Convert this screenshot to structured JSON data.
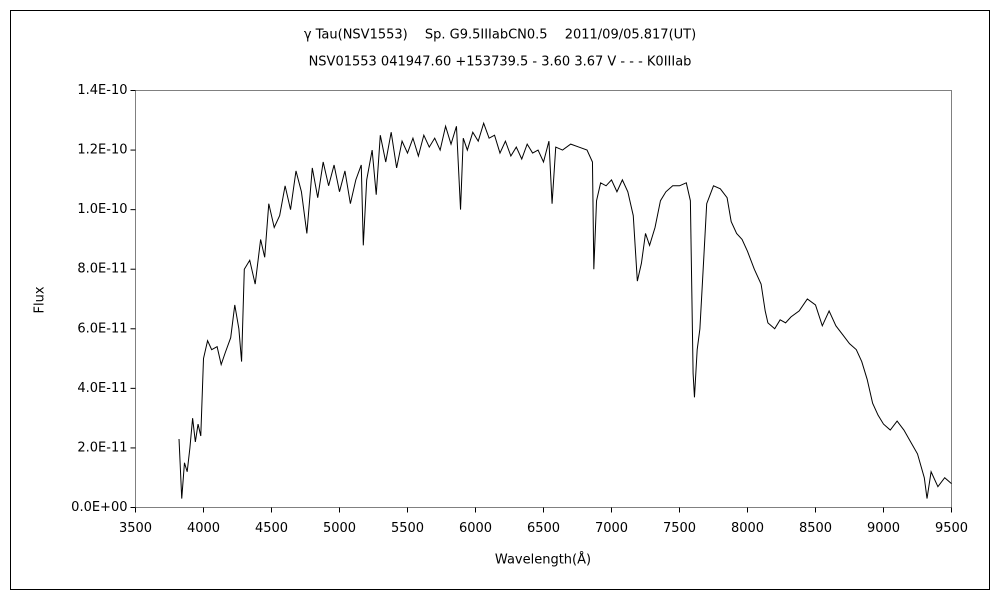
{
  "chart_data": {
    "type": "line",
    "title": "γ Tau(NSV1553)　 Sp. G9.5IIIabCN0.5　 2011/09/05.817(UT)",
    "subtitle": "NSV01553 041947.60 +153739.5 - 3.60 3.67 V - - - K0IIIab",
    "x_label": "Wavelength(Å)",
    "y_label": "Flux",
    "xlim": [
      3500,
      9500
    ],
    "xticks": [
      3500,
      4000,
      4500,
      5000,
      5500,
      6000,
      6500,
      7000,
      7500,
      8000,
      8500,
      9000,
      9500
    ],
    "ylim": [
      0,
      1.4e-10
    ],
    "yticks": [
      {
        "value": 0,
        "label": "0.0E+00"
      },
      {
        "value": 2e-11,
        "label": "2.0E-11"
      },
      {
        "value": 4e-11,
        "label": "4.0E-11"
      },
      {
        "value": 6e-11,
        "label": "6.0E-11"
      },
      {
        "value": 8e-11,
        "label": "8.0E-11"
      },
      {
        "value": 1e-10,
        "label": "1.0E-10"
      },
      {
        "value": 1.2e-10,
        "label": "1.2E-10"
      },
      {
        "value": 1.4e-10,
        "label": "1.4E-10"
      }
    ],
    "x": [
      3820,
      3840,
      3860,
      3880,
      3900,
      3920,
      3940,
      3960,
      3980,
      4000,
      4030,
      4060,
      4100,
      4130,
      4160,
      4200,
      4230,
      4260,
      4280,
      4300,
      4340,
      4380,
      4420,
      4450,
      4480,
      4520,
      4560,
      4600,
      4640,
      4680,
      4720,
      4760,
      4800,
      4840,
      4880,
      4920,
      4960,
      5000,
      5040,
      5080,
      5120,
      5160,
      5175,
      5200,
      5240,
      5270,
      5300,
      5340,
      5380,
      5420,
      5460,
      5500,
      5540,
      5580,
      5620,
      5660,
      5700,
      5740,
      5780,
      5820,
      5860,
      5890,
      5910,
      5940,
      5980,
      6020,
      6060,
      6100,
      6140,
      6180,
      6220,
      6260,
      6300,
      6340,
      6380,
      6420,
      6460,
      6500,
      6540,
      6563,
      6590,
      6640,
      6700,
      6760,
      6820,
      6860,
      6870,
      6890,
      6920,
      6960,
      7000,
      7040,
      7080,
      7120,
      7160,
      7190,
      7220,
      7250,
      7280,
      7320,
      7360,
      7400,
      7450,
      7500,
      7550,
      7580,
      7600,
      7610,
      7630,
      7650,
      7680,
      7700,
      7750,
      7800,
      7850,
      7880,
      7920,
      7960,
      8000,
      8050,
      8100,
      8130,
      8150,
      8200,
      8240,
      8280,
      8320,
      8380,
      8440,
      8500,
      8550,
      8600,
      8650,
      8700,
      8750,
      8800,
      8840,
      8880,
      8920,
      8960,
      9000,
      9050,
      9100,
      9150,
      9200,
      9250,
      9300,
      9320,
      9350,
      9400,
      9450,
      9500
    ],
    "series": [
      {
        "color": "#000000",
        "values": [
          2.3e-11,
          3e-12,
          1.5e-11,
          1.2e-11,
          2e-11,
          3e-11,
          2.2e-11,
          2.8e-11,
          2.4e-11,
          5e-11,
          5.6e-11,
          5.3e-11,
          5.4e-11,
          4.8e-11,
          5.2e-11,
          5.7e-11,
          6.8e-11,
          6e-11,
          4.9e-11,
          8e-11,
          8.3e-11,
          7.5e-11,
          9e-11,
          8.4e-11,
          1.02e-10,
          9.4e-11,
          9.8e-11,
          1.08e-10,
          1e-10,
          1.13e-10,
          1.06e-10,
          9.2e-11,
          1.14e-10,
          1.04e-10,
          1.16e-10,
          1.08e-10,
          1.15e-10,
          1.06e-10,
          1.13e-10,
          1.02e-10,
          1.1e-10,
          1.15e-10,
          8.8e-11,
          1.1e-10,
          1.2e-10,
          1.05e-10,
          1.25e-10,
          1.16e-10,
          1.26e-10,
          1.14e-10,
          1.23e-10,
          1.19e-10,
          1.24e-10,
          1.18e-10,
          1.25e-10,
          1.21e-10,
          1.24e-10,
          1.2e-10,
          1.28e-10,
          1.22e-10,
          1.28e-10,
          1e-10,
          1.24e-10,
          1.2e-10,
          1.26e-10,
          1.23e-10,
          1.29e-10,
          1.24e-10,
          1.25e-10,
          1.19e-10,
          1.23e-10,
          1.18e-10,
          1.21e-10,
          1.17e-10,
          1.22e-10,
          1.19e-10,
          1.2e-10,
          1.16e-10,
          1.23e-10,
          1.02e-10,
          1.21e-10,
          1.2e-10,
          1.22e-10,
          1.21e-10,
          1.2e-10,
          1.16e-10,
          8e-11,
          1.03e-10,
          1.09e-10,
          1.08e-10,
          1.1e-10,
          1.06e-10,
          1.1e-10,
          1.06e-10,
          9.8e-11,
          7.6e-11,
          8.2e-11,
          9.2e-11,
          8.8e-11,
          9.4e-11,
          1.03e-10,
          1.06e-10,
          1.08e-10,
          1.08e-10,
          1.09e-10,
          1.03e-10,
          4.5e-11,
          3.7e-11,
          5.3e-11,
          6e-11,
          8.5e-11,
          1.02e-10,
          1.08e-10,
          1.07e-10,
          1.04e-10,
          9.6e-11,
          9.2e-11,
          9e-11,
          8.6e-11,
          8e-11,
          7.5e-11,
          6.6e-11,
          6.2e-11,
          6e-11,
          6.3e-11,
          6.2e-11,
          6.4e-11,
          6.6e-11,
          7e-11,
          6.8e-11,
          6.1e-11,
          6.6e-11,
          6.1e-11,
          5.8e-11,
          5.5e-11,
          5.3e-11,
          4.9e-11,
          4.3e-11,
          3.5e-11,
          3.1e-11,
          2.8e-11,
          2.6e-11,
          2.9e-11,
          2.6e-11,
          2.2e-11,
          1.8e-11,
          1e-11,
          3e-12,
          1.2e-11,
          7e-12,
          1e-11,
          8e-12
        ]
      }
    ]
  }
}
